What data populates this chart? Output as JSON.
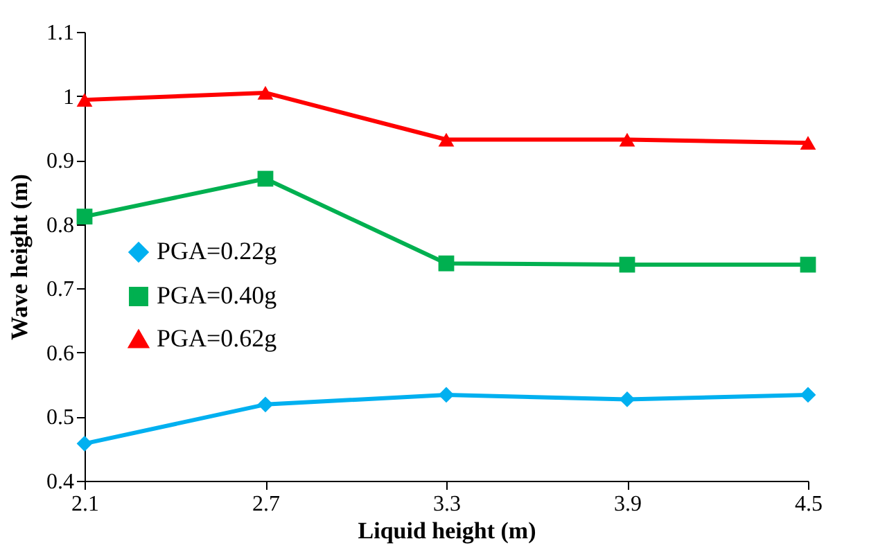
{
  "chart_data": {
    "type": "line",
    "xlabel": "Liquid height (m)",
    "ylabel": "Wave height (m)",
    "x": [
      2.1,
      2.7,
      3.3,
      3.9,
      4.5
    ],
    "series": [
      {
        "name": "PGA=0.22g",
        "color": "#00b0f0",
        "marker": "diamond",
        "values": [
          0.458,
          0.519,
          0.534,
          0.527,
          0.534
        ]
      },
      {
        "name": "PGA=0.40g",
        "color": "#00b050",
        "marker": "square",
        "values": [
          0.812,
          0.871,
          0.739,
          0.737,
          0.737
        ]
      },
      {
        "name": "PGA=0.62g",
        "color": "#ff0000",
        "marker": "triangle",
        "values": [
          0.994,
          1.005,
          0.932,
          0.932,
          0.927
        ]
      }
    ],
    "xlim": [
      2.1,
      4.5
    ],
    "xticks": [
      2.1,
      2.7,
      3.3,
      3.9,
      4.5
    ],
    "ylim": [
      0.4,
      1.1
    ],
    "yticks": [
      0.4,
      0.5,
      0.6,
      0.7,
      0.8,
      0.9,
      1,
      1.1
    ],
    "grid": false,
    "legend": "left",
    "line_style": "solid"
  }
}
